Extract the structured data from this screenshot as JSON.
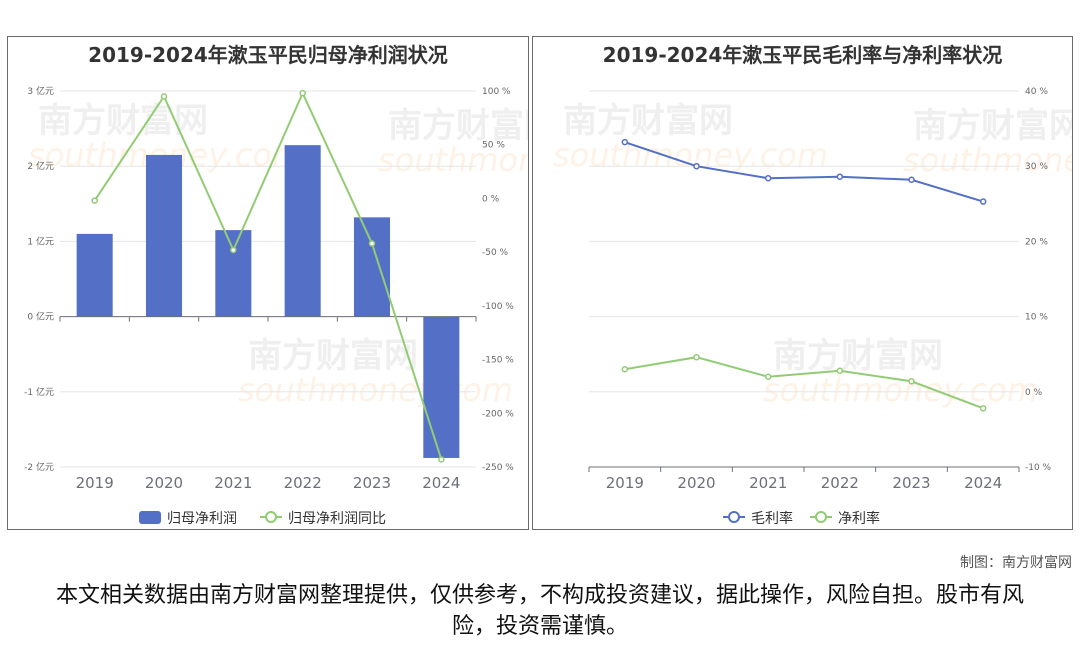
{
  "watermark": {
    "cn": "南方财富网",
    "en": "southmoney.com"
  },
  "credit": "制图：南方财富网",
  "disclaimer": "本文相关数据由南方财富网整理提供，仅供参考，不构成投资建议，据此操作，风险自担。股市有风险，投资需谨慎。",
  "colors": {
    "bar": "#5470c6",
    "line_green": "#91cc75",
    "line_blue": "#5470c6",
    "grid": "#e6e6e6",
    "axis_text": "#666666"
  },
  "chart_data": [
    {
      "type": "bar",
      "title": "2019-2024年漱玉平民归母净利润状况",
      "categories": [
        "2019",
        "2020",
        "2021",
        "2022",
        "2023",
        "2024"
      ],
      "series": [
        {
          "name": "归母净利润",
          "type": "bar",
          "axis": "left",
          "values": [
            1.1,
            2.15,
            1.15,
            2.28,
            1.32,
            -1.88
          ]
        },
        {
          "name": "归母净利润同比",
          "type": "line",
          "axis": "right",
          "values": [
            -2,
            95,
            -48,
            98,
            -42,
            -243
          ]
        }
      ],
      "y_left": {
        "ylim": [
          -2,
          3
        ],
        "ticks": [
          3,
          2,
          1,
          0,
          -1,
          -2
        ],
        "tick_labels": [
          "3 亿元",
          "2 亿元",
          "1 亿元",
          "0 亿元",
          "-1 亿元",
          "-2 亿元"
        ]
      },
      "y_right": {
        "ylim": [
          -250,
          100
        ],
        "ticks": [
          100,
          50,
          0,
          -50,
          -100,
          -150,
          -200,
          -250
        ],
        "tick_labels": [
          "100 %",
          "50 %",
          "0 %",
          "-50 %",
          "-100 %",
          "-150 %",
          "-200 %",
          "-250 %"
        ]
      },
      "legend": "bottom-center",
      "grid": true
    },
    {
      "type": "line",
      "title": "2019-2024年漱玉平民毛利率与净利率状况",
      "categories": [
        "2019",
        "2020",
        "2021",
        "2022",
        "2023",
        "2024"
      ],
      "series": [
        {
          "name": "毛利率",
          "values": [
            33.2,
            30.0,
            28.4,
            28.6,
            28.2,
            25.3
          ]
        },
        {
          "name": "净利率",
          "values": [
            3.0,
            4.6,
            2.0,
            2.8,
            1.4,
            -2.2
          ]
        }
      ],
      "y_right": {
        "ylim": [
          -10,
          40
        ],
        "ticks": [
          40,
          30,
          20,
          10,
          0,
          -10
        ],
        "tick_labels": [
          "40 %",
          "30 %",
          "20 %",
          "10 %",
          "0 %",
          "-10 %"
        ]
      },
      "legend": "bottom-center",
      "grid": true
    }
  ]
}
